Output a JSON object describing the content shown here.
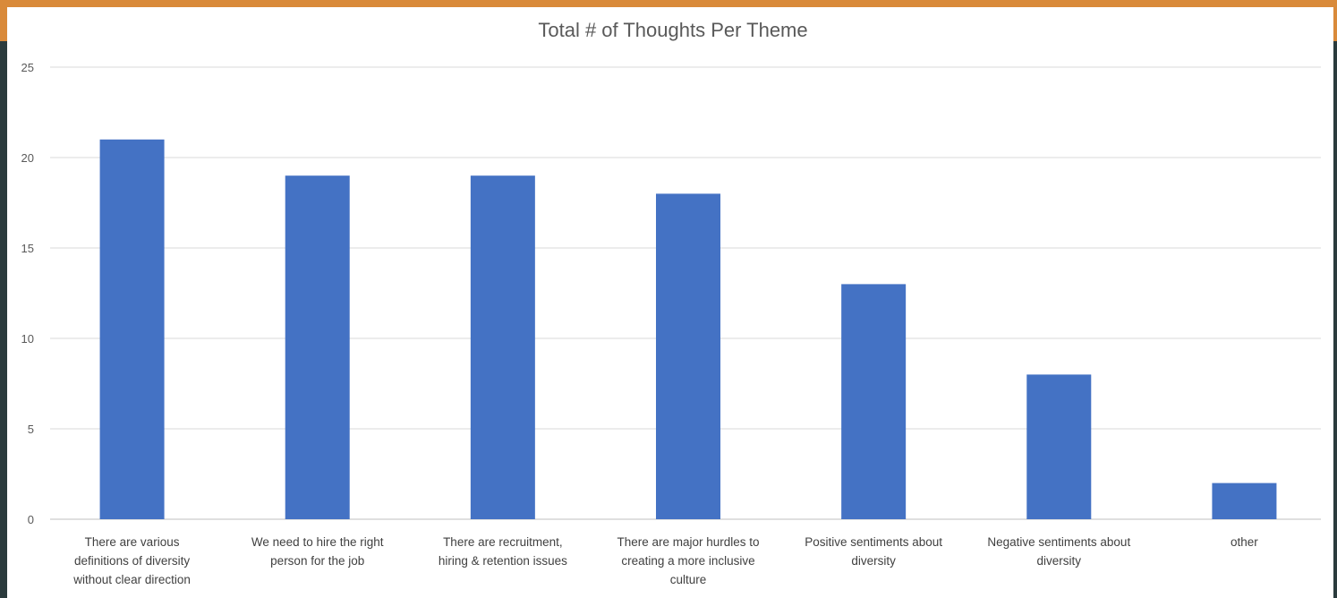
{
  "chart_data": {
    "type": "bar",
    "title": "Total # of Thoughts Per Theme",
    "xlabel": "",
    "ylabel": "",
    "ylim": [
      0,
      25
    ],
    "yticks": [
      "0",
      "5",
      "10",
      "15",
      "20",
      "25"
    ],
    "grid": true,
    "legend": "none",
    "bar_color": "#4472c4",
    "categories": [
      [
        "There are various",
        "definitions of diversity",
        "without clear direction"
      ],
      [
        "We need to hire the right",
        "person for the job"
      ],
      [
        "There are recruitment,",
        "hiring & retention issues"
      ],
      [
        "There are major hurdles to",
        "creating a more inclusive",
        "culture"
      ],
      [
        "Positive sentiments about",
        "diversity"
      ],
      [
        "Negative sentiments about",
        "diversity"
      ],
      [
        "other"
      ]
    ],
    "values": [
      21,
      19,
      19,
      18,
      13,
      8,
      2
    ]
  },
  "colors": {
    "frame": "#2b3b3d",
    "band": "#d98a3a",
    "panel": "#ffffff"
  }
}
